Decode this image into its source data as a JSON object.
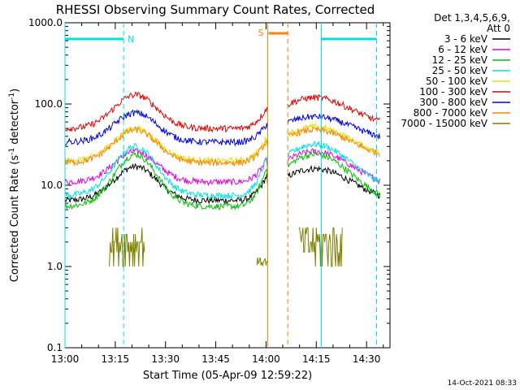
{
  "chart_data": {
    "type": "line",
    "title": "RHESSI Observing Summary Count Rates, Corrected",
    "xlabel": "Start Time (05-Apr-09 12:59:22)",
    "ylabel": "Corrected Count Rate (s",
    "ylabel_sup1": "-1",
    "ylabel_mid": " detector",
    "ylabel_sup2": "-1",
    "ylabel_end": ")",
    "y_scale": "log",
    "ylim": [
      0.1,
      1000
    ],
    "xlim": [
      "13:00",
      "14:37"
    ],
    "x_ticks": [
      {
        "t": 0,
        "label": "13:00"
      },
      {
        "t": 15,
        "label": "13:15"
      },
      {
        "t": 30,
        "label": "13:30"
      },
      {
        "t": 45,
        "label": "13:45"
      },
      {
        "t": 60,
        "label": "14:00"
      },
      {
        "t": 75,
        "label": "14:15"
      },
      {
        "t": 90,
        "label": "14:30"
      }
    ],
    "y_ticks": [
      {
        "v": 0.1,
        "label": "0.1"
      },
      {
        "v": 1,
        "label": "1.0"
      },
      {
        "v": 10,
        "label": "10.0"
      },
      {
        "v": 100,
        "label": "100.0"
      },
      {
        "v": 1000,
        "label": "1000.0"
      }
    ],
    "legend_header": [
      "Det 1,3,4,5,6,9,",
      "Att 0"
    ],
    "legend_position": "right",
    "series": [
      {
        "name": "3 - 6 keV",
        "color": "#000000",
        "base": 6.5,
        "peak": 17,
        "pre": 14,
        "post": 16,
        "tail": 6
      },
      {
        "name": "6 - 12 keV",
        "color": "#e000e0",
        "base": 11,
        "peak": 26,
        "pre": 22,
        "post": 26,
        "tail": 9
      },
      {
        "name": "12 - 25 keV",
        "color": "#00c000",
        "base": 5.5,
        "peak": 24,
        "pre": 19,
        "post": 24,
        "tail": 5.5
      },
      {
        "name": "25 - 50 keV",
        "color": "#00e0e0",
        "base": 7.5,
        "peak": 30,
        "pre": 25,
        "post": 32,
        "tail": 8
      },
      {
        "name": "50 - 100 keV",
        "color": "#e0e000",
        "base": 20,
        "peak": 50,
        "pre": 42,
        "post": 52,
        "tail": 20
      },
      {
        "name": "100 - 300 keV",
        "color": "#e00000",
        "base": 50,
        "peak": 130,
        "pre": 95,
        "post": 120,
        "tail": 50
      },
      {
        "name": "300 - 800 keV",
        "color": "#0000e0",
        "base": 34,
        "peak": 78,
        "pre": 60,
        "post": 70,
        "tail": 34
      },
      {
        "name": "800 - 7000 keV",
        "color": "#ff8000",
        "base": 19,
        "peak": 48,
        "pre": 38,
        "post": 48,
        "tail": 20
      },
      {
        "name": "7000 - 15000 keV",
        "color": "#808000",
        "base": 1,
        "peak": 3,
        "pre": 1,
        "post": 3,
        "tail": 1
      }
    ],
    "data_gaps": [
      [
        60.5,
        66.5
      ]
    ],
    "night_label": "N",
    "night_bars": [
      [
        0,
        17.5
      ],
      [
        76.5,
        93
      ]
    ],
    "saa_label": "S",
    "saa_bar": [
      60.5,
      66.5
    ]
  },
  "timestamp": "14-Oct-2021 08:33"
}
